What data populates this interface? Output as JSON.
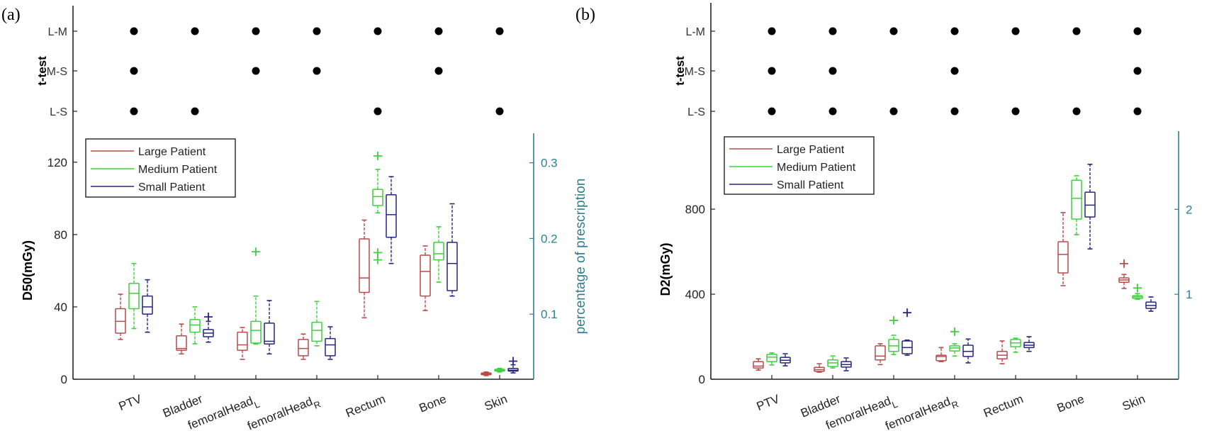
{
  "panel_labels": [
    "(a)",
    "(b)"
  ],
  "colors": {
    "Large Patient": "#b94a4a",
    "Medium Patient": "#3fcf3f",
    "Small Patient": "#25257f",
    "right_axis": "#2f7f8f"
  },
  "chart_data": [
    {
      "type": "box",
      "panel": "(a)",
      "ylabel": "D50(mGy)",
      "ylim": [
        0,
        136
      ],
      "yticks": [
        0,
        40,
        80,
        120
      ],
      "right_ylabel": "percentage of prescription",
      "right_ylim": [
        0.014,
        0.339
      ],
      "right_yticks": [
        0.1,
        0.2,
        0.3
      ],
      "categories": [
        {
          "label": "PTV",
          "sub": ""
        },
        {
          "label": "Bladder",
          "sub": ""
        },
        {
          "label": "femoralHead",
          "sub": "L"
        },
        {
          "label": "femoralHead",
          "sub": "R"
        },
        {
          "label": "Rectum",
          "sub": ""
        },
        {
          "label": "Bone",
          "sub": ""
        },
        {
          "label": "Skin",
          "sub": ""
        }
      ],
      "legend": [
        "Large Patient",
        "Medium Patient",
        "Small Patient"
      ],
      "legend_position": "top-left",
      "ttest": {
        "ylabel": "t-test",
        "rows": [
          "L-M",
          "M-S",
          "L-S"
        ],
        "significant": {
          "L-M": [
            1,
            1,
            1,
            1,
            1,
            1,
            1
          ],
          "M-S": [
            1,
            0,
            1,
            1,
            0,
            1,
            0
          ],
          "L-S": [
            1,
            1,
            0,
            0,
            1,
            0,
            1
          ]
        }
      },
      "series": [
        {
          "name": "Large Patient",
          "boxes": [
            {
              "min": 22,
              "q1": 25.5,
              "median": 32,
              "q3": 39,
              "max": 47,
              "outliers": []
            },
            {
              "min": 14,
              "q1": 16,
              "median": 17,
              "q3": 24,
              "max": 30.5,
              "outliers": []
            },
            {
              "min": 11,
              "q1": 16,
              "median": 19,
              "q3": 26,
              "max": 28.6,
              "outliers": []
            },
            {
              "min": 11,
              "q1": 13,
              "median": 17,
              "q3": 22,
              "max": 25,
              "outliers": []
            },
            {
              "min": 34,
              "q1": 48,
              "median": 56,
              "q3": 77.6,
              "max": 88,
              "outliers": []
            },
            {
              "min": 38,
              "q1": 46,
              "median": 59.6,
              "q3": 68.6,
              "max": 73.7,
              "outliers": []
            },
            {
              "min": 2,
              "q1": 2.5,
              "median": 3,
              "q3": 3.5,
              "max": 4,
              "outliers": []
            }
          ]
        },
        {
          "name": "Medium Patient",
          "boxes": [
            {
              "min": 28,
              "q1": 39,
              "median": 47.5,
              "q3": 53,
              "max": 64,
              "outliers": []
            },
            {
              "min": 19.6,
              "q1": 26,
              "median": 30,
              "q3": 33,
              "max": 40,
              "outliers": []
            },
            {
              "min": 19.5,
              "q1": 20,
              "median": 27,
              "q3": 32,
              "max": 46,
              "outliers": [
                70.5
              ]
            },
            {
              "min": 18.5,
              "q1": 21,
              "median": 27,
              "q3": 31.5,
              "max": 43,
              "outliers": []
            },
            {
              "min": 92,
              "q1": 96,
              "median": 101,
              "q3": 105,
              "max": 116,
              "outliers": [
                123.5,
                70,
                66
              ]
            },
            {
              "min": 53.7,
              "q1": 66,
              "median": 69.4,
              "q3": 75.7,
              "max": 84.3,
              "outliers": []
            },
            {
              "min": 4,
              "q1": 4.5,
              "median": 5,
              "q3": 5.5,
              "max": 6,
              "outliers": []
            }
          ]
        },
        {
          "name": "Small Patient",
          "boxes": [
            {
              "min": 26,
              "q1": 36,
              "median": 40,
              "q3": 46,
              "max": 55,
              "outliers": []
            },
            {
              "min": 20.5,
              "q1": 23.5,
              "median": 25.5,
              "q3": 27.5,
              "max": 32,
              "outliers": [
                34.5
              ]
            },
            {
              "min": 14,
              "q1": 19.5,
              "median": 21,
              "q3": 31,
              "max": 43.5,
              "outliers": []
            },
            {
              "min": 11,
              "q1": 13,
              "median": 19,
              "q3": 22.5,
              "max": 29,
              "outliers": []
            },
            {
              "min": 64,
              "q1": 78.5,
              "median": 91,
              "q3": 102,
              "max": 112,
              "outliers": []
            },
            {
              "min": 46,
              "q1": 49,
              "median": 64,
              "q3": 75.7,
              "max": 97,
              "outliers": []
            },
            {
              "min": 3.5,
              "q1": 4.5,
              "median": 5,
              "q3": 6,
              "max": 8,
              "outliers": [
                10
              ]
            }
          ]
        }
      ]
    },
    {
      "type": "box",
      "panel": "(b)",
      "ylabel": "D2(mGy)",
      "ylim": [
        0,
        1167
      ],
      "yticks": [
        0,
        400,
        800
      ],
      "right_ylabel": "percentage of prescription",
      "right_ylim": [
        0,
        2.92
      ],
      "right_yticks": [
        1,
        2
      ],
      "categories": [
        {
          "label": "PTV",
          "sub": ""
        },
        {
          "label": "Bladder",
          "sub": ""
        },
        {
          "label": "femoralHead",
          "sub": "L"
        },
        {
          "label": "femoralHead",
          "sub": "R"
        },
        {
          "label": "Rectum",
          "sub": ""
        },
        {
          "label": "Bone",
          "sub": ""
        },
        {
          "label": "Skin",
          "sub": ""
        }
      ],
      "legend": [
        "Large Patient",
        "Medium Patient",
        "Small Patient"
      ],
      "legend_position": "top-left",
      "ttest": {
        "ylabel": "t-test",
        "rows": [
          "L-M",
          "M-S",
          "L-S"
        ],
        "significant": {
          "L-M": [
            1,
            1,
            1,
            1,
            1,
            1,
            1
          ],
          "M-S": [
            1,
            1,
            0,
            1,
            0,
            0,
            1
          ],
          "L-S": [
            1,
            1,
            1,
            1,
            1,
            1,
            1
          ]
        }
      },
      "series": [
        {
          "name": "Large Patient",
          "boxes": [
            {
              "min": 43,
              "q1": 53,
              "median": 62,
              "q3": 83,
              "max": 96,
              "outliers": []
            },
            {
              "min": 33,
              "q1": 37,
              "median": 45,
              "q3": 56,
              "max": 73,
              "outliers": []
            },
            {
              "min": 69,
              "q1": 91,
              "median": 109,
              "q3": 157,
              "max": 167,
              "outliers": []
            },
            {
              "min": 83,
              "q1": 87,
              "median": 107,
              "q3": 113,
              "max": 149,
              "outliers": []
            },
            {
              "min": 73,
              "q1": 96,
              "median": 113,
              "q3": 131,
              "max": 180,
              "outliers": []
            },
            {
              "min": 440,
              "q1": 500,
              "median": 587,
              "q3": 647,
              "max": 784,
              "outliers": []
            },
            {
              "min": 427,
              "q1": 456,
              "median": 467,
              "q3": 477,
              "max": 493,
              "outliers": [
                544
              ]
            }
          ]
        },
        {
          "name": "Medium Patient",
          "boxes": [
            {
              "min": 67,
              "q1": 83,
              "median": 104,
              "q3": 117,
              "max": 124,
              "outliers": []
            },
            {
              "min": 53,
              "q1": 60,
              "median": 77,
              "q3": 91,
              "max": 109,
              "outliers": []
            },
            {
              "min": 116,
              "q1": 131,
              "median": 157,
              "q3": 187,
              "max": 207,
              "outliers": [
                277
              ]
            },
            {
              "min": 109,
              "q1": 133,
              "median": 147,
              "q3": 157,
              "max": 167,
              "outliers": [
                224
              ]
            },
            {
              "min": 127,
              "q1": 153,
              "median": 171,
              "q3": 187,
              "max": 193,
              "outliers": []
            },
            {
              "min": 680,
              "q1": 753,
              "median": 851,
              "q3": 936,
              "max": 957,
              "outliers": []
            },
            {
              "min": 376,
              "q1": 380,
              "median": 387,
              "q3": 393,
              "max": 403,
              "outliers": [
                429
              ]
            }
          ]
        },
        {
          "name": "Small Patient",
          "boxes": [
            {
              "min": 63,
              "q1": 77,
              "median": 89,
              "q3": 103,
              "max": 120,
              "outliers": []
            },
            {
              "min": 40,
              "q1": 57,
              "median": 69,
              "q3": 83,
              "max": 100,
              "outliers": []
            },
            {
              "min": 113,
              "q1": 120,
              "median": 149,
              "q3": 180,
              "max": 184,
              "outliers": [
                313
              ]
            },
            {
              "min": 77,
              "q1": 107,
              "median": 131,
              "q3": 160,
              "max": 189,
              "outliers": []
            },
            {
              "min": 131,
              "q1": 149,
              "median": 160,
              "q3": 173,
              "max": 200,
              "outliers": []
            },
            {
              "min": 613,
              "q1": 763,
              "median": 819,
              "q3": 880,
              "max": 1011,
              "outliers": []
            },
            {
              "min": 320,
              "q1": 333,
              "median": 347,
              "q3": 363,
              "max": 387,
              "outliers": []
            }
          ]
        }
      ]
    }
  ]
}
